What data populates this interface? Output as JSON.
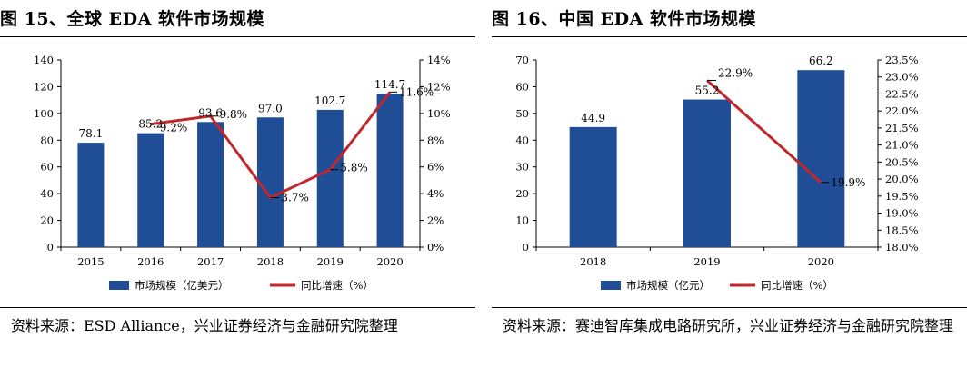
{
  "panels": [
    {
      "title": "图 15、全球 EDA 软件市场规模",
      "source": "资料来源：ESD Alliance，兴业证券经济与金融研究院整理"
    },
    {
      "title": "图 16、中国 EDA 软件市场规模",
      "source": "资料来源：赛迪智库集成电路研究所，兴业证券经济与金融研究院整理"
    }
  ],
  "chart_data": [
    {
      "type": "bar",
      "categories": [
        "2015",
        "2016",
        "2017",
        "2018",
        "2019",
        "2020"
      ],
      "series": [
        {
          "name": "市场规模（亿美元）",
          "type": "bar",
          "axis": "left",
          "values": [
            78.1,
            85.2,
            93.6,
            97.0,
            102.7,
            114.7
          ],
          "labels": [
            "78.1",
            "85.2",
            "93.6",
            "97.0",
            "102.7",
            "114.7"
          ]
        },
        {
          "name": "同比增速（%）",
          "type": "line",
          "axis": "right",
          "values": [
            null,
            9.2,
            9.8,
            3.7,
            5.8,
            11.6
          ],
          "labels": [
            "",
            "9.2%",
            "9.8%",
            "3.7%",
            "5.8%",
            "11.6%"
          ]
        }
      ],
      "yleft": {
        "min": 0,
        "max": 140,
        "ticks": [
          "0",
          "20",
          "40",
          "60",
          "80",
          "100",
          "120",
          "140"
        ]
      },
      "yright": {
        "min": 0,
        "max": 14,
        "ticks": [
          "0%",
          "2%",
          "4%",
          "6%",
          "8%",
          "10%",
          "12%",
          "14%"
        ]
      },
      "colors": {
        "bar": "#1f4e96",
        "line": "#c0282d"
      },
      "grid": false,
      "legend_position": "bottom"
    },
    {
      "type": "bar",
      "categories": [
        "2018",
        "2019",
        "2020"
      ],
      "series": [
        {
          "name": "市场规模（亿元）",
          "type": "bar",
          "axis": "left",
          "values": [
            44.9,
            55.2,
            66.2
          ],
          "labels": [
            "44.9",
            "55.2",
            "66.2"
          ]
        },
        {
          "name": "同比增速（%）",
          "type": "line",
          "axis": "right",
          "values": [
            null,
            22.9,
            19.9
          ],
          "labels": [
            "",
            "22.9%",
            "19.9%"
          ]
        }
      ],
      "yleft": {
        "min": 0,
        "max": 70,
        "ticks": [
          "0",
          "10",
          "20",
          "30",
          "40",
          "50",
          "60",
          "70"
        ]
      },
      "yright": {
        "min": 18,
        "max": 23.5,
        "ticks": [
          "18.0%",
          "18.5%",
          "19.0%",
          "19.5%",
          "20.0%",
          "20.5%",
          "21.0%",
          "21.5%",
          "22.0%",
          "22.5%",
          "23.0%",
          "23.5%"
        ]
      },
      "colors": {
        "bar": "#1f4e96",
        "line": "#c0282d"
      },
      "grid": false,
      "legend_position": "bottom"
    }
  ]
}
